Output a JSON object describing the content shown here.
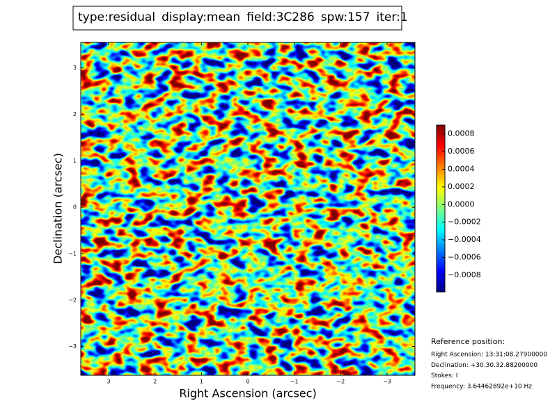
{
  "chart_data": {
    "type": "heatmap",
    "title_parts": [
      {
        "text": "type:residual",
        "color": "#000000"
      },
      {
        "text": "display:mean",
        "color": "#ff0000"
      },
      {
        "text": "field:3C286",
        "color": "#000000"
      },
      {
        "text": "spw:157",
        "color": "#000000"
      },
      {
        "text": "iter:1",
        "color": "#000000"
      }
    ],
    "xlabel": "Right Ascension (arcsec)",
    "ylabel": "Declination (arcsec)",
    "xlim": [
      3.6,
      -3.6
    ],
    "ylim": [
      -3.62,
      3.55
    ],
    "xticks": [
      3,
      2,
      1,
      0,
      {
        "value": -1,
        "label": "−1"
      },
      {
        "value": -2,
        "label": "−2"
      },
      {
        "value": -3,
        "label": "−3"
      }
    ],
    "yticks": [
      {
        "value": -3,
        "label": "−3"
      },
      {
        "value": -2,
        "label": "−2"
      },
      {
        "value": -1,
        "label": "−1"
      },
      0,
      1,
      2,
      3
    ],
    "colorbar": {
      "clim": [
        -0.00099,
        0.0009
      ],
      "ticks": [
        {
          "value": -0.0008,
          "label": "−0.0008"
        },
        {
          "value": -0.0006,
          "label": "−0.0006"
        },
        {
          "value": -0.0004,
          "label": "−0.0004"
        },
        {
          "value": -0.0002,
          "label": "−0.0002"
        },
        {
          "value": 0,
          "label": "0.0000"
        },
        0.0002,
        0.0004,
        0.0006,
        0.0008
      ]
    },
    "reference": {
      "heading": "Reference position:",
      "lines": [
        "Right Ascension: 13:31:08.27900000",
        "Declination: +30.30.32.88200000",
        "Stokes: I",
        "Frequency: 3.64462892e+10 Hz"
      ]
    }
  }
}
